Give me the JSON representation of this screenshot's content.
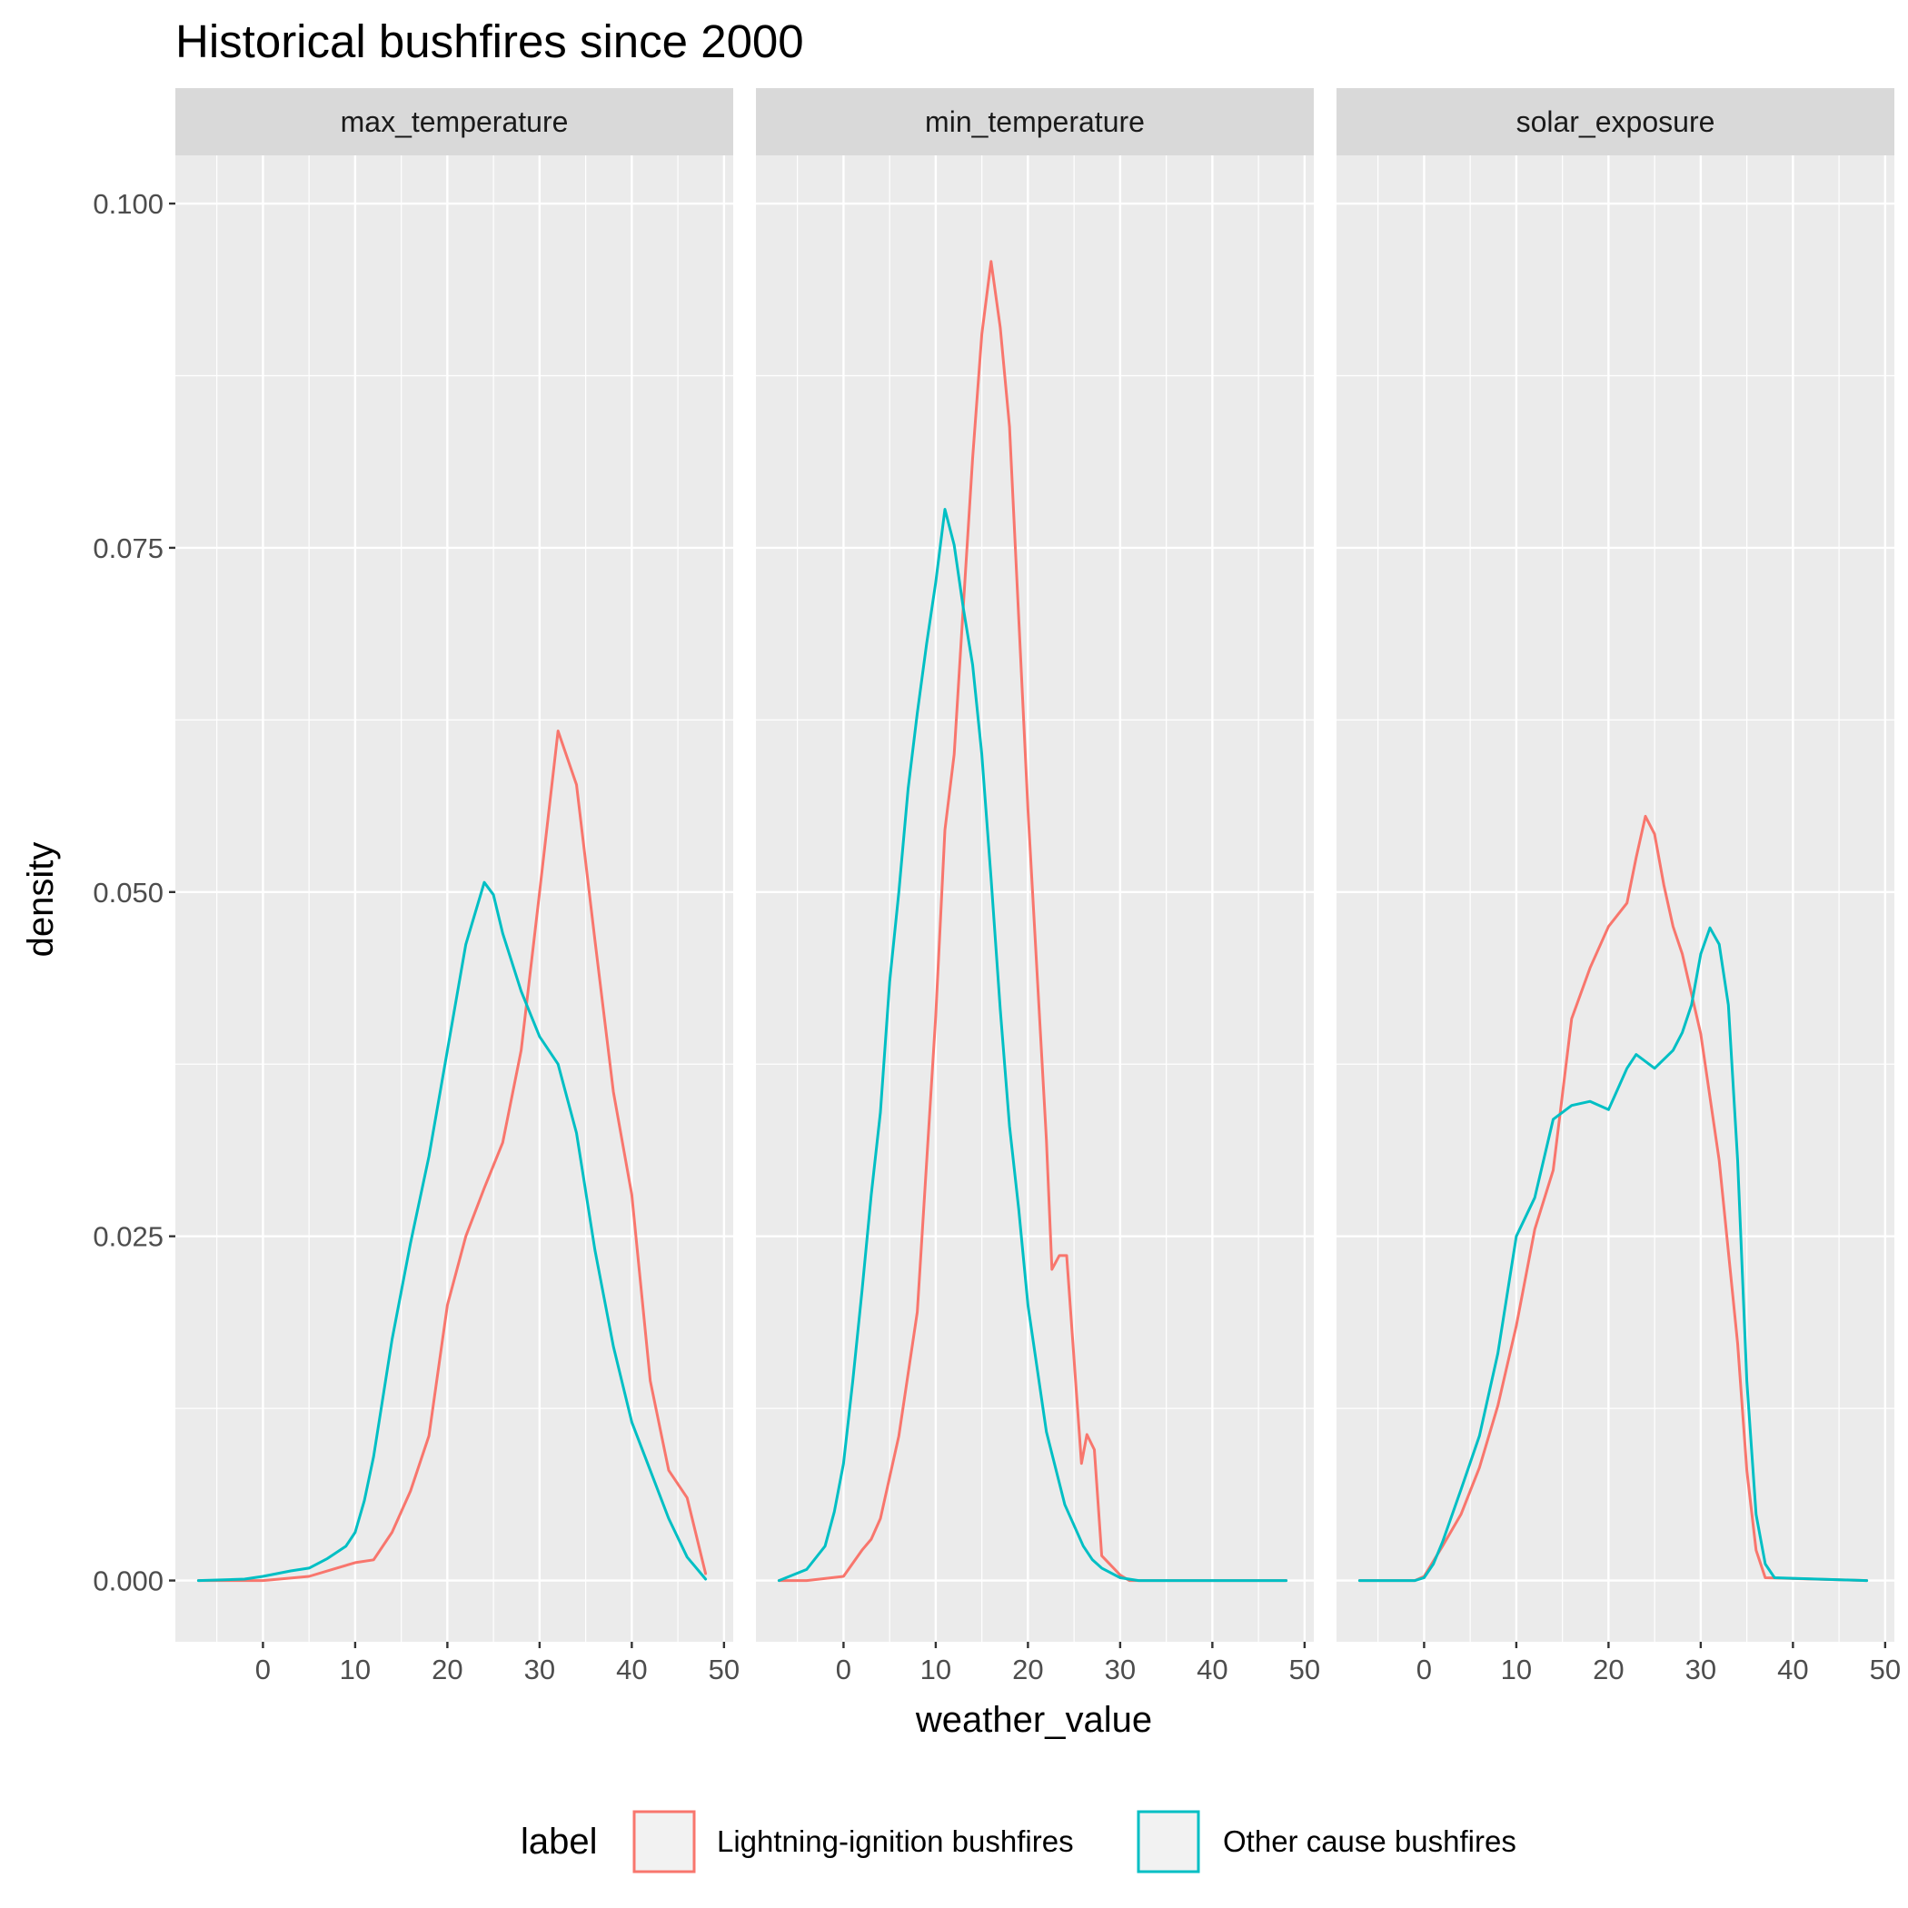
{
  "chart_data": {
    "type": "line",
    "title": "Historical bushfires since 2000",
    "xlabel": "weather_value",
    "ylabel": "density",
    "xlim": [
      -9.5,
      51
    ],
    "ylim": [
      -0.00445,
      0.1035
    ],
    "x_ticks": [
      0,
      10,
      20,
      30,
      40,
      50
    ],
    "x_tick_labels": [
      "0",
      "10",
      "20",
      "30",
      "40",
      "50"
    ],
    "y_ticks": [
      0,
      0.025,
      0.05,
      0.075,
      0.1
    ],
    "y_tick_labels": [
      "0.000",
      "0.025",
      "0.050",
      "0.075",
      "0.100"
    ],
    "grid": true,
    "legend": {
      "title": "label",
      "position": "bottom",
      "entries": [
        "Lightning-ignition bushfires",
        "Other cause bushfires"
      ]
    },
    "colors": {
      "Lightning-ignition bushfires": "#F8766D",
      "Other cause bushfires": "#00BFC4"
    },
    "facets": [
      {
        "name": "max_temperature",
        "series": [
          {
            "name": "Lightning-ignition bushfires",
            "x": [
              -7,
              0,
              5,
              8,
              10,
              12,
              14,
              16,
              18,
              20,
              22,
              24,
              26,
              28,
              30,
              32,
              34,
              36,
              38,
              40,
              42,
              44,
              46,
              48
            ],
            "y": [
              0,
              0,
              0.0003,
              0.0009,
              0.0013,
              0.0015,
              0.0035,
              0.0065,
              0.0105,
              0.02,
              0.025,
              0.0285,
              0.0318,
              0.0385,
              0.05,
              0.0617,
              0.0578,
              0.0465,
              0.0355,
              0.028,
              0.0145,
              0.008,
              0.006,
              0.0005
            ]
          },
          {
            "name": "Other cause bushfires",
            "x": [
              -7,
              -2,
              0,
              3,
              5,
              7,
              9,
              10,
              11,
              12,
              14,
              16,
              18,
              20,
              22,
              24,
              25,
              26,
              28,
              30,
              32,
              34,
              36,
              38,
              40,
              42,
              44,
              46,
              48
            ],
            "y": [
              0,
              0.0001,
              0.0003,
              0.0007,
              0.0009,
              0.0016,
              0.0025,
              0.0035,
              0.0058,
              0.009,
              0.0175,
              0.0245,
              0.0308,
              0.0385,
              0.0462,
              0.0507,
              0.0498,
              0.047,
              0.0428,
              0.0395,
              0.0375,
              0.0325,
              0.024,
              0.017,
              0.0115,
              0.008,
              0.0045,
              0.0017,
              0.0001
            ]
          }
        ]
      },
      {
        "name": "min_temperature",
        "series": [
          {
            "name": "Lightning-ignition bushfires",
            "x": [
              -7,
              -4,
              0,
              2,
              3,
              4,
              6,
              8,
              10,
              11,
              12,
              13,
              14,
              15,
              16,
              17,
              18,
              20,
              22,
              22.6,
              23.4,
              24.2,
              25.8,
              26.4,
              27.2,
              28,
              30,
              31,
              48
            ],
            "y": [
              0,
              0,
              0.0003,
              0.0022,
              0.003,
              0.0045,
              0.0105,
              0.0195,
              0.041,
              0.0545,
              0.06,
              0.0708,
              0.0815,
              0.0905,
              0.0958,
              0.091,
              0.0838,
              0.056,
              0.032,
              0.0226,
              0.0236,
              0.0236,
              0.0085,
              0.0106,
              0.0095,
              0.0018,
              0.0004,
              0,
              0
            ]
          },
          {
            "name": "Other cause bushfires",
            "x": [
              -7,
              -4,
              -2,
              -1,
              0,
              1,
              2,
              3,
              4,
              5,
              6,
              7,
              8,
              9,
              10,
              11,
              12,
              13,
              14,
              15,
              16,
              17,
              18,
              19,
              20,
              22,
              24,
              26,
              27,
              28,
              30,
              32,
              48
            ],
            "y": [
              0,
              0.0008,
              0.0025,
              0.005,
              0.0085,
              0.0145,
              0.021,
              0.028,
              0.034,
              0.0435,
              0.05,
              0.0575,
              0.063,
              0.068,
              0.0725,
              0.0778,
              0.0752,
              0.0706,
              0.0665,
              0.06,
              0.051,
              0.0415,
              0.033,
              0.027,
              0.02,
              0.0108,
              0.0055,
              0.0025,
              0.0015,
              0.0009,
              0.0002,
              0,
              0
            ]
          }
        ]
      },
      {
        "name": "solar_exposure",
        "series": [
          {
            "name": "Lightning-ignition bushfires",
            "x": [
              -7,
              -1,
              0,
              2,
              4,
              6,
              8,
              10,
              12,
              14,
              16,
              18,
              20,
              22,
              23,
              24,
              25,
              26,
              27,
              28,
              30,
              32,
              34,
              35,
              36,
              37,
              48
            ],
            "y": [
              0,
              0,
              0.0003,
              0.0025,
              0.0048,
              0.0082,
              0.0127,
              0.0185,
              0.0255,
              0.0298,
              0.0408,
              0.0445,
              0.0475,
              0.0492,
              0.0525,
              0.0555,
              0.0542,
              0.0505,
              0.0475,
              0.0455,
              0.0397,
              0.0305,
              0.0172,
              0.008,
              0.0022,
              0.0002,
              0
            ]
          },
          {
            "name": "Other cause bushfires",
            "x": [
              -7,
              -1,
              0,
              1,
              2,
              4,
              6,
              8,
              10,
              12,
              14,
              16,
              18,
              20,
              22,
              23,
              25,
              27,
              28,
              29,
              30,
              31,
              32,
              33,
              34,
              35,
              36,
              37,
              38,
              48
            ],
            "y": [
              0,
              0,
              0.0002,
              0.0012,
              0.0028,
              0.0066,
              0.0105,
              0.0165,
              0.025,
              0.0278,
              0.0335,
              0.0345,
              0.0348,
              0.0342,
              0.0372,
              0.0382,
              0.0372,
              0.0385,
              0.0398,
              0.0418,
              0.0455,
              0.0474,
              0.0462,
              0.0418,
              0.0305,
              0.0145,
              0.0048,
              0.0012,
              0.0002,
              0
            ]
          }
        ]
      }
    ]
  }
}
